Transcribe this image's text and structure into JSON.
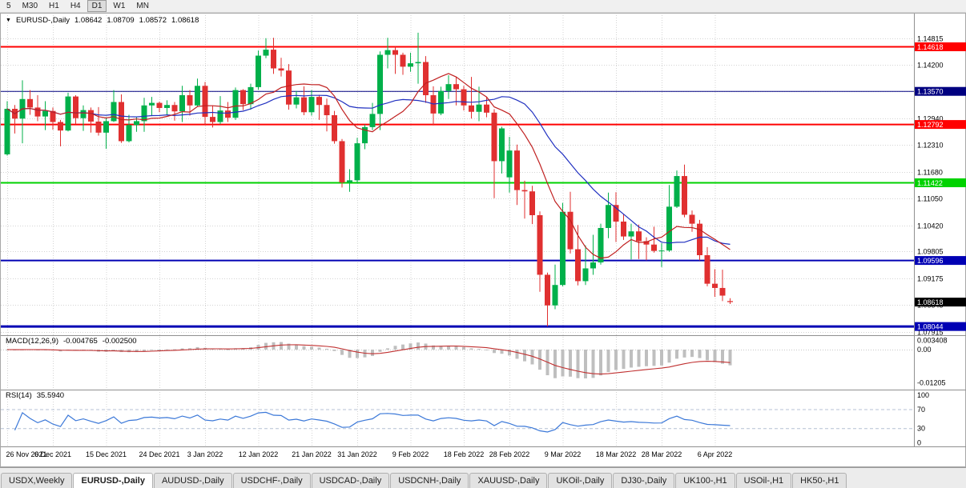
{
  "toolbar": {
    "timeframes": [
      "5",
      "M30",
      "H1",
      "H4",
      "D1",
      "W1",
      "MN"
    ],
    "active": "D1"
  },
  "chart_header": {
    "dropdown_icon": "▼",
    "symbol": "EURUSD-,Daily",
    "open": "1.08642",
    "high": "1.08709",
    "low": "1.08572",
    "close": "1.08618"
  },
  "indicators": {
    "macd": {
      "label": "MACD(12,26,9)",
      "value_main": "-0.004765",
      "value_signal": "-0.002500",
      "histogram_color": "#bfbfbf",
      "signal_color": "#c03030",
      "axis_labels": [
        {
          "label": "0.003408",
          "value": 0.003408
        },
        {
          "label": "0.00",
          "value": 0
        },
        {
          "label": "-0.01205",
          "value": -0.01205
        }
      ]
    },
    "rsi": {
      "label": "RSI(14)",
      "value": "35.5940",
      "line_color": "#3b78d8",
      "levels": [
        70,
        30
      ],
      "axis_labels": [
        {
          "label": "100",
          "value": 100
        },
        {
          "label": "70",
          "value": 70
        },
        {
          "label": "30",
          "value": 30
        },
        {
          "label": "0",
          "value": 0
        }
      ]
    }
  },
  "price_axis": {
    "grid_labels": [
      "1.14815",
      "1.14200",
      "1.13570",
      "1.12940",
      "1.12310",
      "1.11680",
      "1.11050",
      "1.10420",
      "1.09805",
      "1.09175",
      "1.08545",
      "1.07915"
    ],
    "current_price": {
      "label": "1.08618",
      "value": 1.08618,
      "bg": "#000000",
      "fg": "#ffffff"
    }
  },
  "chart_data": {
    "type": "candlestick",
    "symbol": "EURUSD",
    "period": "Daily",
    "up_color": "#00b04a",
    "down_color": "#e03030",
    "ma_fast": {
      "period": 10,
      "color": "#c02020"
    },
    "ma_slow": {
      "period": 20,
      "color": "#2030c0"
    },
    "hlines": [
      {
        "value": 1.14618,
        "label": "1.14618",
        "color": "#ff0000",
        "w": 2
      },
      {
        "value": 1.1357,
        "label": "1.13570",
        "color": "#000080",
        "w": 1
      },
      {
        "value": 1.12792,
        "label": "1.12792",
        "color": "#ff0000",
        "w": 2
      },
      {
        "value": 1.11422,
        "label": "1.11422",
        "color": "#00d200",
        "w": 2
      },
      {
        "value": 1.09596,
        "label": "1.09596",
        "color": "#0000b4",
        "w": 2
      },
      {
        "value": 1.08044,
        "label": "1.08044",
        "color": "#0000b4",
        "w": 3
      }
    ],
    "x_labels": [
      {
        "label": "26 Nov 2021",
        "i": 0
      },
      {
        "label": "6 Dec 2021",
        "i": 6
      },
      {
        "label": "15 Dec 2021",
        "i": 13
      },
      {
        "label": "24 Dec 2021",
        "i": 20
      },
      {
        "label": "3 Jan 2022",
        "i": 26
      },
      {
        "label": "12 Jan 2022",
        "i": 33
      },
      {
        "label": "21 Jan 2022",
        "i": 40
      },
      {
        "label": "31 Jan 2022",
        "i": 46
      },
      {
        "label": "9 Feb 2022",
        "i": 53
      },
      {
        "label": "18 Feb 2022",
        "i": 60
      },
      {
        "label": "28 Feb 2022",
        "i": 66
      },
      {
        "label": "9 Mar 2022",
        "i": 73
      },
      {
        "label": "18 Mar 2022",
        "i": 80
      },
      {
        "label": "28 Mar 2022",
        "i": 86
      },
      {
        "label": "6 Apr 2022",
        "i": 93
      }
    ],
    "candles": [
      [
        1.1209,
        1.1334,
        1.1206,
        1.1316
      ],
      [
        1.1316,
        1.1325,
        1.1258,
        1.1293
      ],
      [
        1.1293,
        1.1383,
        1.1235,
        1.1339
      ],
      [
        1.1339,
        1.136,
        1.1302,
        1.1319
      ],
      [
        1.1319,
        1.1348,
        1.1287,
        1.1298
      ],
      [
        1.1298,
        1.1334,
        1.1266,
        1.1311
      ],
      [
        1.1311,
        1.1319,
        1.1267,
        1.1285
      ],
      [
        1.1285,
        1.129,
        1.1228,
        1.1265
      ],
      [
        1.1265,
        1.1354,
        1.1263,
        1.1345
      ],
      [
        1.1345,
        1.1348,
        1.128,
        1.1294
      ],
      [
        1.1294,
        1.1324,
        1.1264,
        1.1313
      ],
      [
        1.1313,
        1.1319,
        1.126,
        1.1286
      ],
      [
        1.1286,
        1.132,
        1.1253,
        1.126
      ],
      [
        1.126,
        1.1296,
        1.1222,
        1.1287
      ],
      [
        1.1287,
        1.136,
        1.1285,
        1.1332
      ],
      [
        1.1332,
        1.135,
        1.1236,
        1.124
      ],
      [
        1.124,
        1.1302,
        1.1237,
        1.1278
      ],
      [
        1.1278,
        1.1296,
        1.1262,
        1.1287
      ],
      [
        1.1287,
        1.1342,
        1.1262,
        1.1324
      ],
      [
        1.1324,
        1.1344,
        1.1299,
        1.133
      ],
      [
        1.133,
        1.1333,
        1.1308,
        1.1318
      ],
      [
        1.1318,
        1.1336,
        1.1301,
        1.1325
      ],
      [
        1.1325,
        1.1332,
        1.1288,
        1.131
      ],
      [
        1.131,
        1.137,
        1.1285,
        1.1348
      ],
      [
        1.1348,
        1.136,
        1.13,
        1.1324
      ],
      [
        1.1324,
        1.1387,
        1.1321,
        1.137
      ],
      [
        1.137,
        1.1379,
        1.1279,
        1.1297
      ],
      [
        1.1297,
        1.1324,
        1.1272,
        1.1285
      ],
      [
        1.1285,
        1.1346,
        1.128,
        1.1312
      ],
      [
        1.1312,
        1.1332,
        1.1285,
        1.1295
      ],
      [
        1.1295,
        1.1366,
        1.129,
        1.136
      ],
      [
        1.136,
        1.1362,
        1.1313,
        1.1327
      ],
      [
        1.1327,
        1.1375,
        1.1314,
        1.1367
      ],
      [
        1.1367,
        1.1453,
        1.1361,
        1.1441
      ],
      [
        1.1441,
        1.1482,
        1.1435,
        1.1455
      ],
      [
        1.1455,
        1.1483,
        1.1398,
        1.1411
      ],
      [
        1.1411,
        1.1436,
        1.1392,
        1.1406
      ],
      [
        1.1406,
        1.1421,
        1.1314,
        1.1326
      ],
      [
        1.1326,
        1.1358,
        1.1317,
        1.1343
      ],
      [
        1.1343,
        1.1369,
        1.1301,
        1.1308
      ],
      [
        1.1308,
        1.136,
        1.13,
        1.1344
      ],
      [
        1.1344,
        1.1349,
        1.129,
        1.1325
      ],
      [
        1.1325,
        1.134,
        1.1263,
        1.1301
      ],
      [
        1.1301,
        1.1311,
        1.1234,
        1.124
      ],
      [
        1.124,
        1.1245,
        1.1131,
        1.1143
      ],
      [
        1.1143,
        1.1174,
        1.1121,
        1.1148
      ],
      [
        1.1148,
        1.1248,
        1.1141,
        1.1235
      ],
      [
        1.1235,
        1.1279,
        1.1221,
        1.1273
      ],
      [
        1.1273,
        1.133,
        1.1266,
        1.1304
      ],
      [
        1.1304,
        1.1451,
        1.1266,
        1.1443
      ],
      [
        1.1443,
        1.1483,
        1.1411,
        1.1454
      ],
      [
        1.1454,
        1.1462,
        1.1398,
        1.1443
      ],
      [
        1.1443,
        1.1448,
        1.1396,
        1.1415
      ],
      [
        1.1415,
        1.1448,
        1.1403,
        1.1423
      ],
      [
        1.1423,
        1.1495,
        1.1375,
        1.1426
      ],
      [
        1.1426,
        1.144,
        1.133,
        1.1348
      ],
      [
        1.1348,
        1.1369,
        1.1277,
        1.1305
      ],
      [
        1.1305,
        1.1368,
        1.1301,
        1.1358
      ],
      [
        1.1358,
        1.1395,
        1.1339,
        1.1374
      ],
      [
        1.1374,
        1.1392,
        1.1324,
        1.1362
      ],
      [
        1.1362,
        1.137,
        1.1312,
        1.1324
      ],
      [
        1.1324,
        1.1391,
        1.1293,
        1.1309
      ],
      [
        1.1309,
        1.1368,
        1.1287,
        1.1326
      ],
      [
        1.1326,
        1.1343,
        1.1296,
        1.1307
      ],
      [
        1.1307,
        1.1315,
        1.1106,
        1.1193
      ],
      [
        1.1193,
        1.1274,
        1.1164,
        1.127
      ],
      [
        1.1155,
        1.125,
        1.1119,
        1.1218
      ],
      [
        1.1218,
        1.1232,
        1.109,
        1.1125
      ],
      [
        1.1125,
        1.1147,
        1.1058,
        1.1122
      ],
      [
        1.1122,
        1.1135,
        1.1045,
        1.1066
      ],
      [
        1.1066,
        1.1075,
        1.0886,
        1.0926
      ],
      [
        1.0926,
        1.0931,
        1.0805,
        1.0854
      ],
      [
        1.0854,
        1.095,
        1.0845,
        1.0902
      ],
      [
        1.0902,
        1.1095,
        1.0899,
        1.1074
      ],
      [
        1.1074,
        1.1121,
        1.0976,
        1.0986
      ],
      [
        1.0986,
        1.1043,
        1.0901,
        1.0911
      ],
      [
        1.0911,
        1.0995,
        1.0902,
        1.0941
      ],
      [
        1.0941,
        1.102,
        1.0926,
        1.0955
      ],
      [
        1.0955,
        1.1046,
        1.095,
        1.1036
      ],
      [
        1.1036,
        1.1119,
        1.1012,
        1.109
      ],
      [
        1.109,
        1.112,
        1.1003,
        1.1051
      ],
      [
        1.1051,
        1.1069,
        1.1008,
        1.1016
      ],
      [
        1.1016,
        1.1046,
        1.0962,
        1.1028
      ],
      [
        1.1028,
        1.1044,
        1.0963,
        1.1005
      ],
      [
        1.1005,
        1.1014,
        1.096,
        1.0997
      ],
      [
        1.0997,
        1.1039,
        1.0978,
        1.0982
      ],
      [
        1.0982,
        1.1,
        1.0944,
        1.0983
      ],
      [
        1.0983,
        1.1137,
        1.098,
        1.1086
      ],
      [
        1.1086,
        1.1171,
        1.1083,
        1.1158
      ],
      [
        1.1158,
        1.1185,
        1.1061,
        1.1067
      ],
      [
        1.1067,
        1.1077,
        1.1027,
        1.1046
      ],
      [
        1.1046,
        1.1055,
        1.096,
        1.0972
      ],
      [
        1.0972,
        1.0991,
        1.0899,
        1.0905
      ],
      [
        1.0905,
        1.0939,
        1.0874,
        1.0895
      ],
      [
        1.0895,
        1.0938,
        1.0864,
        1.0877
      ],
      [
        1.08642,
        1.08709,
        1.08572,
        1.08618
      ]
    ]
  },
  "tabs": {
    "items": [
      {
        "label": "USDX,Weekly",
        "active": false
      },
      {
        "label": "EURUSD-,Daily",
        "active": true
      },
      {
        "label": "AUDUSD-,Daily",
        "active": false
      },
      {
        "label": "USDCHF-,Daily",
        "active": false
      },
      {
        "label": "USDCAD-,Daily",
        "active": false
      },
      {
        "label": "USDCNH-,Daily",
        "active": false
      },
      {
        "label": "XAUUSD-,Daily",
        "active": false
      },
      {
        "label": "UKOil-,Daily",
        "active": false
      },
      {
        "label": "DJ30-,Daily",
        "active": false
      },
      {
        "label": "UK100-,H1",
        "active": false
      },
      {
        "label": "USOil-,H1",
        "active": false
      },
      {
        "label": "HK50-,H1",
        "active": false
      }
    ]
  }
}
